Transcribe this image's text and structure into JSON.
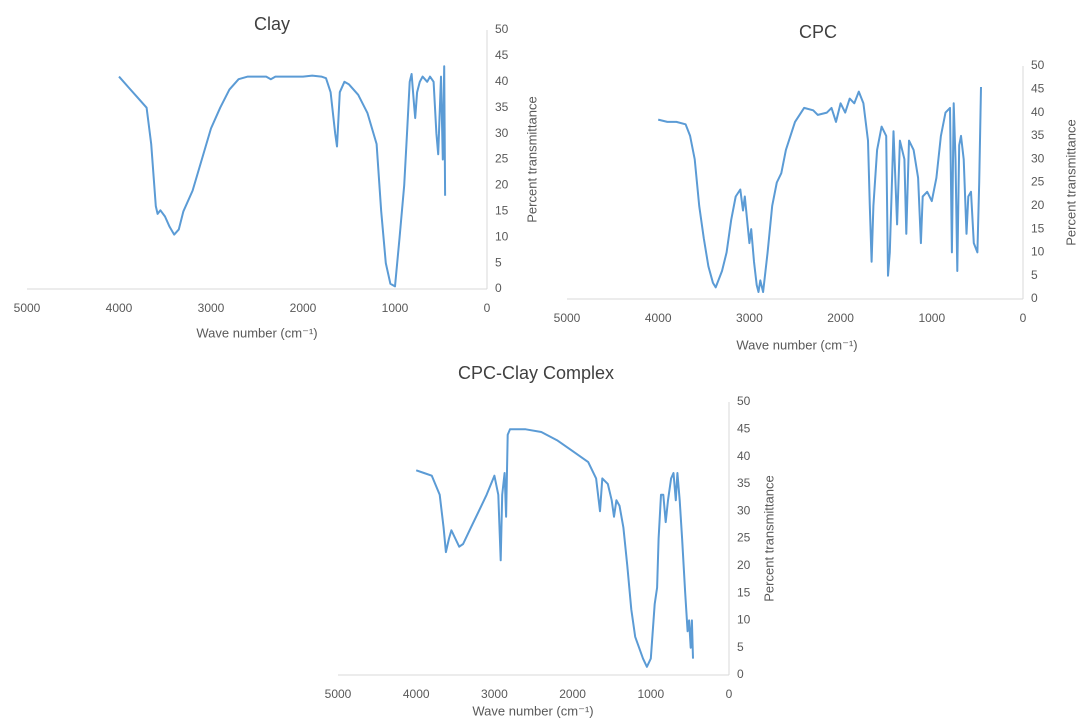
{
  "chart_data": [
    {
      "type": "line",
      "title": "Clay",
      "x_label": "Wave number (cm⁻¹)",
      "y_label": "Percent transmittance",
      "color": "#5b9bd5",
      "xlim": [
        5000,
        0
      ],
      "xticks": [
        5000,
        4000,
        3000,
        2000,
        1000,
        0
      ],
      "ylim": [
        0,
        50
      ],
      "yticks": [
        0,
        5,
        10,
        15,
        20,
        25,
        30,
        35,
        40,
        45,
        50
      ],
      "x": [
        4000,
        3900,
        3800,
        3700,
        3650,
        3600,
        3580,
        3550,
        3500,
        3450,
        3400,
        3350,
        3300,
        3200,
        3100,
        3000,
        2900,
        2800,
        2700,
        2600,
        2400,
        2350,
        2300,
        2000,
        1900,
        1800,
        1750,
        1700,
        1650,
        1630,
        1600,
        1550,
        1500,
        1400,
        1300,
        1200,
        1150,
        1100,
        1050,
        1000,
        950,
        900,
        870,
        840,
        820,
        790,
        780,
        760,
        730,
        700,
        650,
        620,
        580,
        550,
        530,
        500,
        480,
        465,
        455
      ],
      "values": [
        41,
        39,
        37,
        35,
        28,
        16,
        14.5,
        15.2,
        14,
        12,
        10.5,
        11.5,
        15,
        19,
        25,
        31,
        35,
        38.5,
        40.5,
        41,
        41,
        40.5,
        41,
        41,
        41.2,
        41,
        40.7,
        38,
        30,
        27.5,
        38,
        40,
        39.5,
        37.5,
        34,
        28,
        15,
        5,
        1,
        0.5,
        10,
        20,
        30,
        40,
        41.5,
        35,
        33,
        38,
        40,
        41,
        40,
        41,
        40,
        30,
        26,
        41,
        25,
        43,
        18
      ]
    },
    {
      "type": "line",
      "title": "CPC",
      "x_label": "Wave number (cm⁻¹)",
      "y_label": "Percent transmittance",
      "color": "#5b9bd5",
      "xlim": [
        5000,
        0
      ],
      "xticks": [
        5000,
        4000,
        3000,
        2000,
        1000,
        0
      ],
      "ylim": [
        0,
        50
      ],
      "yticks": [
        0,
        5,
        10,
        15,
        20,
        25,
        30,
        35,
        40,
        45,
        50
      ],
      "x": [
        4000,
        3900,
        3800,
        3700,
        3650,
        3600,
        3550,
        3500,
        3450,
        3400,
        3370,
        3300,
        3250,
        3200,
        3150,
        3100,
        3070,
        3050,
        3000,
        2980,
        2950,
        2920,
        2900,
        2880,
        2850,
        2800,
        2750,
        2700,
        2650,
        2600,
        2500,
        2400,
        2300,
        2250,
        2150,
        2100,
        2050,
        2000,
        1950,
        1900,
        1850,
        1800,
        1750,
        1700,
        1680,
        1660,
        1640,
        1600,
        1550,
        1500,
        1480,
        1460,
        1420,
        1380,
        1350,
        1300,
        1280,
        1250,
        1200,
        1150,
        1120,
        1100,
        1050,
        1000,
        950,
        900,
        850,
        800,
        780,
        760,
        740,
        720,
        700,
        680,
        650,
        620,
        600,
        570,
        540,
        500,
        480,
        460
      ],
      "values": [
        38.5,
        38,
        38,
        37.5,
        35,
        30,
        20,
        13,
        7,
        3.5,
        2.5,
        6,
        10,
        17,
        22,
        23.5,
        19,
        22,
        12,
        15,
        8,
        3,
        1.5,
        4,
        1.5,
        10,
        20,
        25,
        27,
        32,
        38,
        41,
        40.5,
        39.5,
        40,
        41,
        38,
        42,
        40,
        43,
        42,
        44.5,
        42,
        34,
        20,
        8,
        20,
        32,
        37,
        35,
        5,
        10,
        36,
        16,
        34,
        30,
        14,
        34,
        32,
        26,
        12,
        22,
        23,
        21,
        26,
        35,
        40,
        41,
        10,
        42,
        30,
        6,
        33,
        35,
        30,
        14,
        22,
        23,
        12,
        10,
        25,
        45.5
      ]
    },
    {
      "type": "line",
      "title": "CPC-Clay Complex",
      "x_label": "Wave number (cm⁻¹)",
      "y_label": "Percent transmittance",
      "color": "#5b9bd5",
      "xlim": [
        5000,
        0
      ],
      "xticks": [
        5000,
        4000,
        3000,
        2000,
        1000,
        0
      ],
      "ylim": [
        0,
        50
      ],
      "yticks": [
        0,
        5,
        10,
        15,
        20,
        25,
        30,
        35,
        40,
        45,
        50
      ],
      "x": [
        4000,
        3900,
        3800,
        3700,
        3650,
        3620,
        3580,
        3550,
        3500,
        3450,
        3400,
        3300,
        3200,
        3100,
        3000,
        2950,
        2920,
        2900,
        2870,
        2850,
        2830,
        2800,
        2600,
        2400,
        2200,
        2000,
        1800,
        1700,
        1650,
        1620,
        1550,
        1500,
        1470,
        1440,
        1400,
        1350,
        1300,
        1250,
        1200,
        1150,
        1100,
        1050,
        1000,
        950,
        920,
        900,
        870,
        840,
        810,
        780,
        740,
        710,
        680,
        660,
        630,
        600,
        560,
        530,
        510,
        490,
        475,
        460
      ],
      "values": [
        37.5,
        37,
        36.5,
        33,
        27,
        22.5,
        25,
        26.5,
        25,
        23.5,
        24,
        27,
        30,
        33,
        36.5,
        33,
        21,
        33,
        37,
        29,
        44,
        45,
        45,
        44.5,
        43,
        41,
        39,
        36,
        30,
        36,
        35,
        32,
        29,
        32,
        31,
        27,
        20,
        12,
        7,
        5,
        3,
        1.5,
        3,
        13,
        16,
        25,
        33,
        33,
        28,
        32,
        36,
        37,
        32,
        37,
        32,
        25,
        15,
        8,
        10,
        5,
        10,
        3
      ]
    }
  ]
}
